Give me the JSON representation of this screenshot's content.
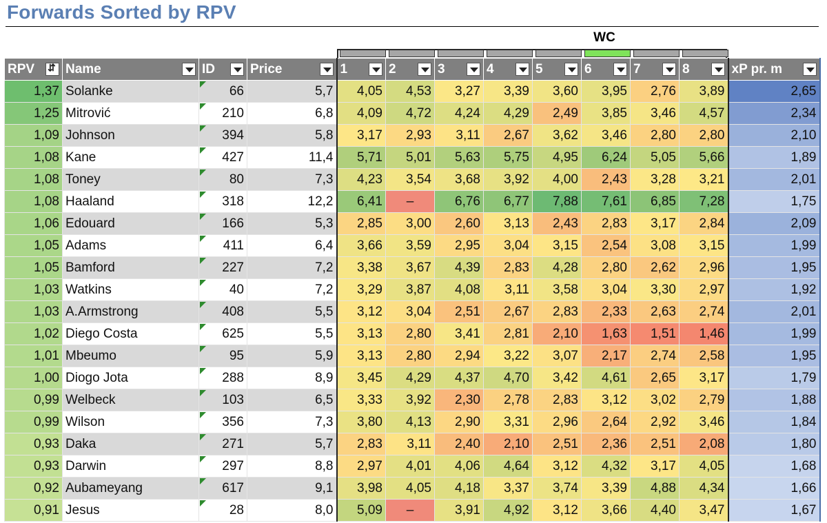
{
  "title": "Forwards Sorted by RPV",
  "wc_label": "WC",
  "columns": {
    "rpv": "RPV",
    "name": "Name",
    "id": "ID",
    "price": "Price",
    "gw": [
      "1",
      "2",
      "3",
      "4",
      "5",
      "6",
      "7",
      "8"
    ],
    "xp": "xP pr. m"
  },
  "rows": [
    {
      "rpv": "1,37",
      "name": "Solanke",
      "id": "66",
      "price": "5,7",
      "gw": [
        "4,05",
        "4,53",
        "3,27",
        "3,39",
        "3,60",
        "3,95",
        "2,76",
        "3,89"
      ],
      "xp": "2,65"
    },
    {
      "rpv": "1,25",
      "name": "Mitrović",
      "id": "210",
      "price": "6,8",
      "gw": [
        "4,09",
        "4,72",
        "4,24",
        "4,29",
        "2,49",
        "3,85",
        "3,46",
        "4,57"
      ],
      "xp": "2,34"
    },
    {
      "rpv": "1,09",
      "name": "Johnson",
      "id": "394",
      "price": "5,8",
      "gw": [
        "3,17",
        "2,93",
        "3,11",
        "2,67",
        "3,62",
        "3,46",
        "2,80",
        "2,80"
      ],
      "xp": "2,10"
    },
    {
      "rpv": "1,08",
      "name": "Kane",
      "id": "427",
      "price": "11,4",
      "gw": [
        "5,71",
        "5,01",
        "5,63",
        "5,75",
        "4,95",
        "6,24",
        "5,05",
        "5,66"
      ],
      "xp": "1,89"
    },
    {
      "rpv": "1,08",
      "name": "Toney",
      "id": "80",
      "price": "7,3",
      "gw": [
        "4,23",
        "3,54",
        "3,68",
        "3,92",
        "4,00",
        "2,43",
        "3,28",
        "3,21"
      ],
      "xp": "2,01"
    },
    {
      "rpv": "1,08",
      "name": "Haaland",
      "id": "318",
      "price": "12,2",
      "gw": [
        "6,41",
        "–",
        "6,76",
        "6,77",
        "7,88",
        "7,61",
        "6,85",
        "7,28"
      ],
      "xp": "1,75"
    },
    {
      "rpv": "1,06",
      "name": "Edouard",
      "id": "166",
      "price": "5,3",
      "gw": [
        "2,85",
        "3,00",
        "2,60",
        "3,13",
        "2,43",
        "2,83",
        "3,17",
        "2,84"
      ],
      "xp": "2,09"
    },
    {
      "rpv": "1,05",
      "name": "Adams",
      "id": "411",
      "price": "6,4",
      "gw": [
        "3,66",
        "3,59",
        "2,95",
        "3,04",
        "3,15",
        "2,54",
        "3,08",
        "3,15"
      ],
      "xp": "1,99"
    },
    {
      "rpv": "1,05",
      "name": "Bamford",
      "id": "227",
      "price": "7,2",
      "gw": [
        "3,38",
        "3,67",
        "4,39",
        "2,83",
        "4,28",
        "2,80",
        "2,62",
        "2,96"
      ],
      "xp": "1,95"
    },
    {
      "rpv": "1,03",
      "name": "Watkins",
      "id": "40",
      "price": "7,2",
      "gw": [
        "3,29",
        "3,87",
        "4,08",
        "3,11",
        "3,58",
        "3,04",
        "3,30",
        "2,97"
      ],
      "xp": "1,92"
    },
    {
      "rpv": "1,03",
      "name": "A.Armstrong",
      "id": "408",
      "price": "5,5",
      "gw": [
        "3,12",
        "3,04",
        "2,51",
        "2,67",
        "2,83",
        "2,33",
        "2,63",
        "2,74"
      ],
      "xp": "2,01"
    },
    {
      "rpv": "1,02",
      "name": "Diego Costa",
      "id": "625",
      "price": "5,5",
      "gw": [
        "3,13",
        "2,80",
        "3,41",
        "2,81",
        "2,10",
        "1,63",
        "1,51",
        "1,46"
      ],
      "xp": "1,99"
    },
    {
      "rpv": "1,01",
      "name": "Mbeumo",
      "id": "95",
      "price": "5,9",
      "gw": [
        "3,13",
        "2,80",
        "2,94",
        "3,22",
        "3,07",
        "2,17",
        "2,74",
        "2,58"
      ],
      "xp": "1,95"
    },
    {
      "rpv": "1,00",
      "name": "Diogo Jota",
      "id": "288",
      "price": "8,9",
      "gw": [
        "3,45",
        "4,29",
        "4,37",
        "4,70",
        "3,42",
        "4,61",
        "2,65",
        "3,17"
      ],
      "xp": "1,79"
    },
    {
      "rpv": "0,99",
      "name": "Welbeck",
      "id": "103",
      "price": "6,5",
      "gw": [
        "3,33",
        "3,92",
        "2,30",
        "2,78",
        "2,83",
        "3,12",
        "3,02",
        "2,79"
      ],
      "xp": "1,88"
    },
    {
      "rpv": "0,99",
      "name": "Wilson",
      "id": "356",
      "price": "7,3",
      "gw": [
        "3,80",
        "4,13",
        "2,90",
        "3,31",
        "2,96",
        "2,64",
        "2,92",
        "3,46"
      ],
      "xp": "1,84"
    },
    {
      "rpv": "0,93",
      "name": "Daka",
      "id": "271",
      "price": "5,7",
      "gw": [
        "2,83",
        "3,11",
        "2,40",
        "2,10",
        "2,51",
        "2,36",
        "2,51",
        "2,08"
      ],
      "xp": "1,80"
    },
    {
      "rpv": "0,93",
      "name": "Darwin",
      "id": "297",
      "price": "8,8",
      "gw": [
        "2,97",
        "4,01",
        "4,06",
        "4,64",
        "3,12",
        "4,32",
        "3,17",
        "4,05"
      ],
      "xp": "1,68"
    },
    {
      "rpv": "0,92",
      "name": "Aubameyang",
      "id": "617",
      "price": "9,1",
      "gw": [
        "3,98",
        "4,05",
        "4,18",
        "3,37",
        "3,74",
        "3,39",
        "4,88",
        "4,34"
      ],
      "xp": "1,66"
    },
    {
      "rpv": "0,91",
      "name": "Jesus",
      "id": "28",
      "price": "8,0",
      "gw": [
        "5,09",
        "–",
        "3,91",
        "4,92",
        "3,12",
        "3,66",
        "4,40",
        "3,47"
      ],
      "xp": "1,67"
    }
  ],
  "colors": {
    "header_bg": "#808080",
    "title": "#5a7fb3",
    "wc_band": "#7fe35a",
    "missing_cell": "#f08a7a"
  }
}
